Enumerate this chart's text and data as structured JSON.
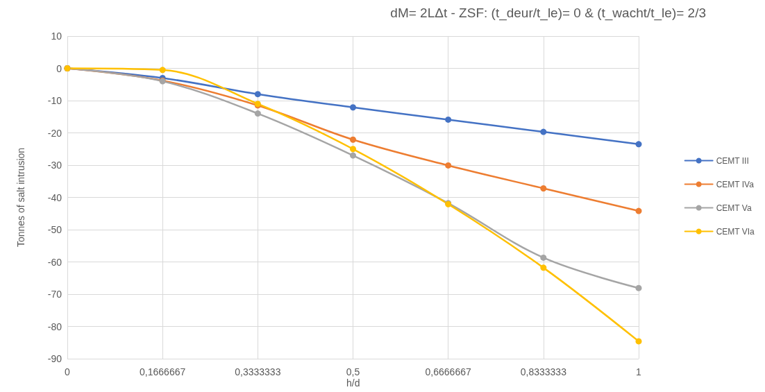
{
  "chart_data": {
    "type": "line",
    "title": "dM= 2LΔt - ZSF: (t_deur/t_le)= 0 & (t_wacht/t_le)= 2/3",
    "xlabel": "h/d",
    "ylabel": "Tonnes of salt intrusion",
    "categories": [
      "0",
      "0,1666667",
      "0,3333333",
      "0,5",
      "0,6666667",
      "0,8333333",
      "1"
    ],
    "series": [
      {
        "name": "CEMT III",
        "color": "#4472c4",
        "values": [
          0,
          -3,
          -8,
          -12.1,
          -15.9,
          -19.7,
          -23.5
        ]
      },
      {
        "name": "CEMT IVa",
        "color": "#ed7d31",
        "values": [
          0,
          -3.8,
          -11.5,
          -22.1,
          -30.1,
          -37.2,
          -44.2
        ]
      },
      {
        "name": "CEMT Va",
        "color": "#a5a5a5",
        "values": [
          0,
          -4,
          -14,
          -27,
          -41.8,
          -58.7,
          -68.1
        ]
      },
      {
        "name": "CEMT VIa",
        "color": "#ffc000",
        "values": [
          0,
          -0.5,
          -11,
          -25,
          -42.1,
          -61.8,
          -84.6
        ]
      }
    ],
    "ylim": [
      -90,
      10
    ],
    "yticks": [
      -90,
      -80,
      -70,
      -60,
      -50,
      -40,
      -30,
      -20,
      -10,
      0,
      10
    ],
    "grid": true,
    "legend": "right",
    "marker": "circle",
    "line_style": "solid"
  }
}
